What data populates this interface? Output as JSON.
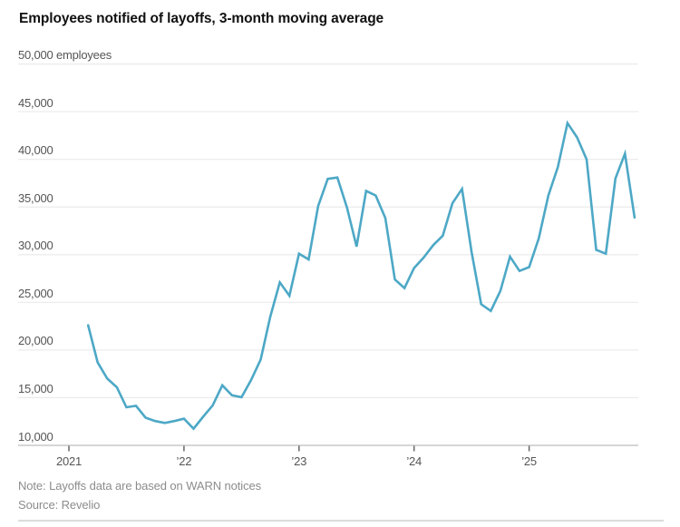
{
  "title": "Employees notified of layoffs, 3-month moving average",
  "footer": {
    "note": "Note: Layoffs data are based on WARN notices",
    "source": "Source: Revelio"
  },
  "colors": {
    "line": "#4DA8C6",
    "grid": "#e9e9e9",
    "baseline": "#bdbdbd",
    "tick": "#666666",
    "axis_label": "#555555",
    "muted_text": "#8c8c8c"
  },
  "chart_data": {
    "type": "line",
    "title": "Employees notified of layoffs, 3-month moving average",
    "unit": "employees",
    "grid": true,
    "legend": "none",
    "line_color": "#4DA8C6",
    "ylim": [
      10000,
      50000
    ],
    "y_ticks": [
      10000,
      15000,
      20000,
      25000,
      30000,
      35000,
      40000,
      45000,
      50000
    ],
    "y_tick_labels": [
      "10,000",
      "15,000",
      "20,000",
      "25,000",
      "30,000",
      "35,000",
      "40,000",
      "45,000",
      "50,000 employees"
    ],
    "x_ticks": [
      {
        "label": "2021",
        "year": 2021
      },
      {
        "label": "’22",
        "year": 2022
      },
      {
        "label": "’23",
        "year": 2023
      },
      {
        "label": "’24",
        "year": 2024
      },
      {
        "label": "’25",
        "year": 2025
      }
    ],
    "x": [
      "2021-03",
      "2021-04",
      "2021-05",
      "2021-06",
      "2021-07",
      "2021-08",
      "2021-09",
      "2021-10",
      "2021-11",
      "2021-12",
      "2022-01",
      "2022-02",
      "2022-03",
      "2022-04",
      "2022-05",
      "2022-06",
      "2022-07",
      "2022-08",
      "2022-09",
      "2022-10",
      "2022-11",
      "2022-12",
      "2023-01",
      "2023-02",
      "2023-03",
      "2023-04",
      "2023-05",
      "2023-06",
      "2023-07",
      "2023-08",
      "2023-09",
      "2023-10",
      "2023-11",
      "2023-12",
      "2024-01",
      "2024-02",
      "2024-03",
      "2024-04",
      "2024-05",
      "2024-06",
      "2024-07",
      "2024-08",
      "2024-09",
      "2024-10",
      "2024-11",
      "2024-12",
      "2025-01",
      "2025-02",
      "2025-03",
      "2025-04",
      "2025-05",
      "2025-06",
      "2025-07",
      "2025-08",
      "2025-09",
      "2025-10",
      "2025-11",
      "2025-12"
    ],
    "values": [
      22600,
      18700,
      17000,
      16100,
      14000,
      14150,
      12900,
      12550,
      12350,
      12550,
      12800,
      11750,
      13000,
      14200,
      16300,
      15250,
      15050,
      16850,
      19000,
      23500,
      27100,
      25700,
      30100,
      29500,
      35100,
      37950,
      38100,
      34950,
      30850,
      36700,
      36200,
      33850,
      27400,
      26500,
      28600,
      29700,
      31000,
      32000,
      35400,
      36900,
      30300,
      24800,
      24100,
      26200,
      29800,
      28300,
      28700,
      31700,
      36200,
      39200,
      43800,
      42300,
      40000,
      30500,
      30100,
      38000,
      40600,
      33900
    ],
    "note": "Note: Layoffs data are based on WARN notices",
    "source": "Source: Revelio"
  }
}
